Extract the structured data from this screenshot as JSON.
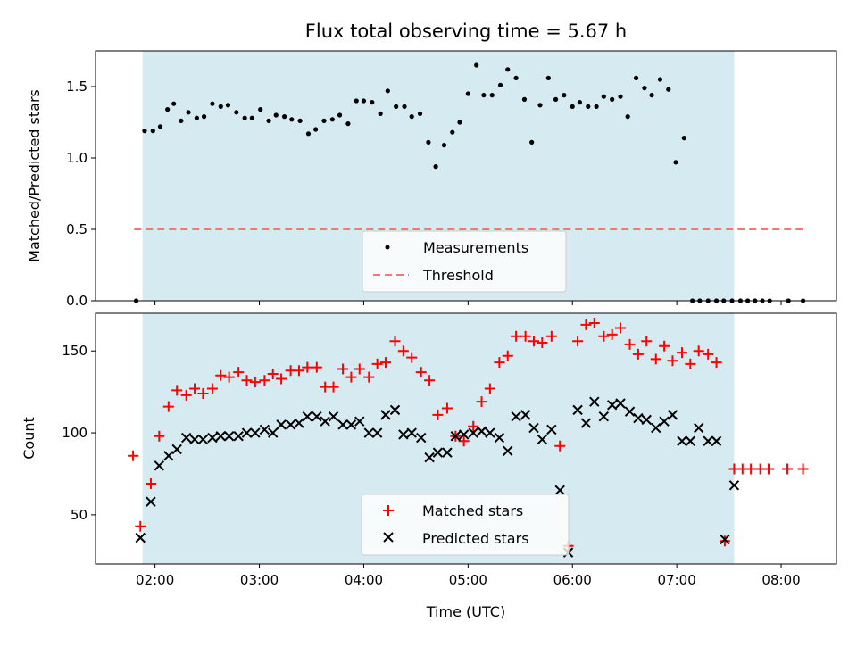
{
  "chart_data": {
    "type": "scatter",
    "title": "Flux total observing time = 5.67 h",
    "xlabel": "Time (UTC)",
    "xlim_hours": [
      1.43,
      8.53
    ],
    "x_tick_labels": [
      "02:00",
      "03:00",
      "04:00",
      "05:00",
      "06:00",
      "07:00",
      "08:00"
    ],
    "x_tick_values_hours": [
      2,
      3,
      4,
      5,
      6,
      7,
      8
    ],
    "shaded_span_hours": [
      1.88,
      7.55
    ],
    "shaded_color": "#d4eaf0",
    "top_panel": {
      "ylabel": "Matched/Predicted stars",
      "ylim": [
        0,
        1.75
      ],
      "y_ticks": [
        0.0,
        0.5,
        1.0,
        1.5
      ],
      "y_tick_labels": [
        "0.0",
        "0.5",
        "1.0",
        "1.5"
      ],
      "threshold": {
        "name": "Threshold",
        "value": 0.5,
        "x_range_hours": [
          1.8,
          8.22
        ],
        "color": "#f07878"
      },
      "legend": {
        "placement": "lower-center",
        "entries": [
          "Measurements",
          "Threshold"
        ]
      },
      "measurements": {
        "name": "Measurements",
        "color": "#000000",
        "x_hours": [
          1.82,
          1.9,
          1.98,
          2.05,
          2.12,
          2.18,
          2.25,
          2.32,
          2.4,
          2.47,
          2.55,
          2.63,
          2.7,
          2.78,
          2.86,
          2.93,
          3.01,
          3.09,
          3.16,
          3.24,
          3.31,
          3.39,
          3.47,
          3.54,
          3.62,
          3.7,
          3.77,
          3.85,
          3.93,
          4.0,
          4.08,
          4.16,
          4.23,
          4.31,
          4.39,
          4.46,
          4.54,
          4.62,
          4.69,
          4.77,
          4.85,
          4.92,
          5.0,
          5.08,
          5.15,
          5.23,
          5.31,
          5.38,
          5.46,
          5.54,
          5.61,
          5.69,
          5.77,
          5.84,
          5.92,
          6.0,
          6.07,
          6.15,
          6.23,
          6.3,
          6.38,
          6.46,
          6.53,
          6.61,
          6.69,
          6.76,
          6.84,
          6.92,
          6.99,
          7.07,
          7.15,
          7.22,
          7.3,
          7.38,
          7.45,
          7.53,
          7.61,
          7.68,
          7.75,
          7.82,
          7.89,
          8.07,
          8.21
        ],
        "y": [
          0.0,
          1.19,
          1.19,
          1.22,
          1.34,
          1.38,
          1.26,
          1.32,
          1.28,
          1.29,
          1.38,
          1.36,
          1.37,
          1.32,
          1.28,
          1.28,
          1.34,
          1.26,
          1.3,
          1.29,
          1.27,
          1.26,
          1.17,
          1.2,
          1.26,
          1.27,
          1.3,
          1.24,
          1.4,
          1.4,
          1.39,
          1.31,
          1.47,
          1.36,
          1.36,
          1.29,
          1.31,
          1.11,
          0.94,
          1.09,
          1.18,
          1.25,
          1.45,
          1.65,
          1.44,
          1.44,
          1.51,
          1.62,
          1.56,
          1.41,
          1.11,
          1.37,
          1.56,
          1.41,
          1.44,
          1.36,
          1.39,
          1.36,
          1.36,
          1.43,
          1.41,
          1.43,
          1.29,
          1.56,
          1.49,
          1.44,
          1.55,
          1.48,
          0.97,
          1.14,
          0.0,
          0.0,
          0.0,
          0.0,
          0.0,
          0.0,
          0.0,
          0.0,
          0.0,
          0.0,
          0.0,
          0.0,
          0.0
        ]
      }
    },
    "bottom_panel": {
      "ylabel": "Count",
      "ylim": [
        20,
        173
      ],
      "y_ticks": [
        50,
        100,
        150
      ],
      "y_tick_labels": [
        "50",
        "100",
        "150"
      ],
      "legend": {
        "placement": "lower-center",
        "entries": [
          "Matched stars",
          "Predicted stars"
        ]
      },
      "matched": {
        "name": "Matched stars",
        "color": "#ff0000",
        "x_hours": [
          1.79,
          1.86,
          1.96,
          2.04,
          2.13,
          2.21,
          2.3,
          2.38,
          2.46,
          2.55,
          2.63,
          2.71,
          2.8,
          2.88,
          2.96,
          3.05,
          3.13,
          3.21,
          3.3,
          3.38,
          3.46,
          3.55,
          3.63,
          3.71,
          3.8,
          3.88,
          3.96,
          4.05,
          4.13,
          4.21,
          4.3,
          4.38,
          4.46,
          4.55,
          4.63,
          4.71,
          4.8,
          4.88,
          4.96,
          5.05,
          5.13,
          5.21,
          5.3,
          5.38,
          5.46,
          5.55,
          5.63,
          5.71,
          5.8,
          5.88,
          5.96,
          6.05,
          6.13,
          6.21,
          6.3,
          6.38,
          6.46,
          6.55,
          6.63,
          6.71,
          6.8,
          6.88,
          6.96,
          7.05,
          7.13,
          7.21,
          7.3,
          7.38,
          7.46,
          7.55,
          7.63,
          7.71,
          7.8,
          7.88,
          8.06,
          8.21
        ],
        "y": [
          86,
          43,
          69,
          98,
          116,
          126,
          123,
          127,
          124,
          127,
          135,
          134,
          137,
          132,
          131,
          132,
          136,
          133,
          138,
          138,
          140,
          140,
          128,
          128,
          139,
          134,
          139,
          134,
          142,
          143,
          156,
          150,
          146,
          137,
          132,
          111,
          115,
          98,
          95,
          104,
          119,
          127,
          143,
          147,
          159,
          159,
          156,
          155,
          159,
          92,
          31,
          156,
          166,
          167,
          159,
          160,
          164,
          154,
          148,
          156,
          145,
          153,
          144,
          149,
          142,
          150,
          148,
          143,
          34,
          78,
          78,
          78,
          78,
          78,
          78,
          78
        ]
      },
      "predicted": {
        "name": "Predicted stars",
        "color": "#000000",
        "x_hours": [
          1.86,
          1.96,
          2.04,
          2.13,
          2.21,
          2.3,
          2.38,
          2.46,
          2.55,
          2.63,
          2.71,
          2.8,
          2.88,
          2.96,
          3.05,
          3.13,
          3.21,
          3.3,
          3.38,
          3.46,
          3.55,
          3.63,
          3.71,
          3.8,
          3.88,
          3.96,
          4.05,
          4.13,
          4.21,
          4.3,
          4.38,
          4.46,
          4.55,
          4.63,
          4.71,
          4.8,
          4.88,
          4.96,
          5.05,
          5.13,
          5.21,
          5.3,
          5.38,
          5.46,
          5.55,
          5.63,
          5.71,
          5.8,
          5.88,
          5.96,
          6.05,
          6.13,
          6.21,
          6.3,
          6.38,
          6.46,
          6.55,
          6.63,
          6.71,
          6.8,
          6.88,
          6.96,
          7.05,
          7.13,
          7.21,
          7.3,
          7.38,
          7.46,
          7.55
        ],
        "y": [
          36,
          58,
          80,
          86,
          90,
          97,
          96,
          96,
          97,
          98,
          98,
          98,
          100,
          100,
          102,
          100,
          105,
          105,
          106,
          110,
          110,
          107,
          110,
          105,
          105,
          107,
          100,
          100,
          111,
          114,
          99,
          100,
          97,
          85,
          88,
          88,
          98,
          99,
          100,
          101,
          100,
          97,
          89,
          110,
          111,
          103,
          96,
          102,
          65,
          27,
          114,
          106,
          119,
          110,
          117,
          118,
          113,
          109,
          108,
          103,
          107,
          111,
          95,
          95,
          103,
          95,
          95,
          35,
          68
        ]
      }
    }
  }
}
